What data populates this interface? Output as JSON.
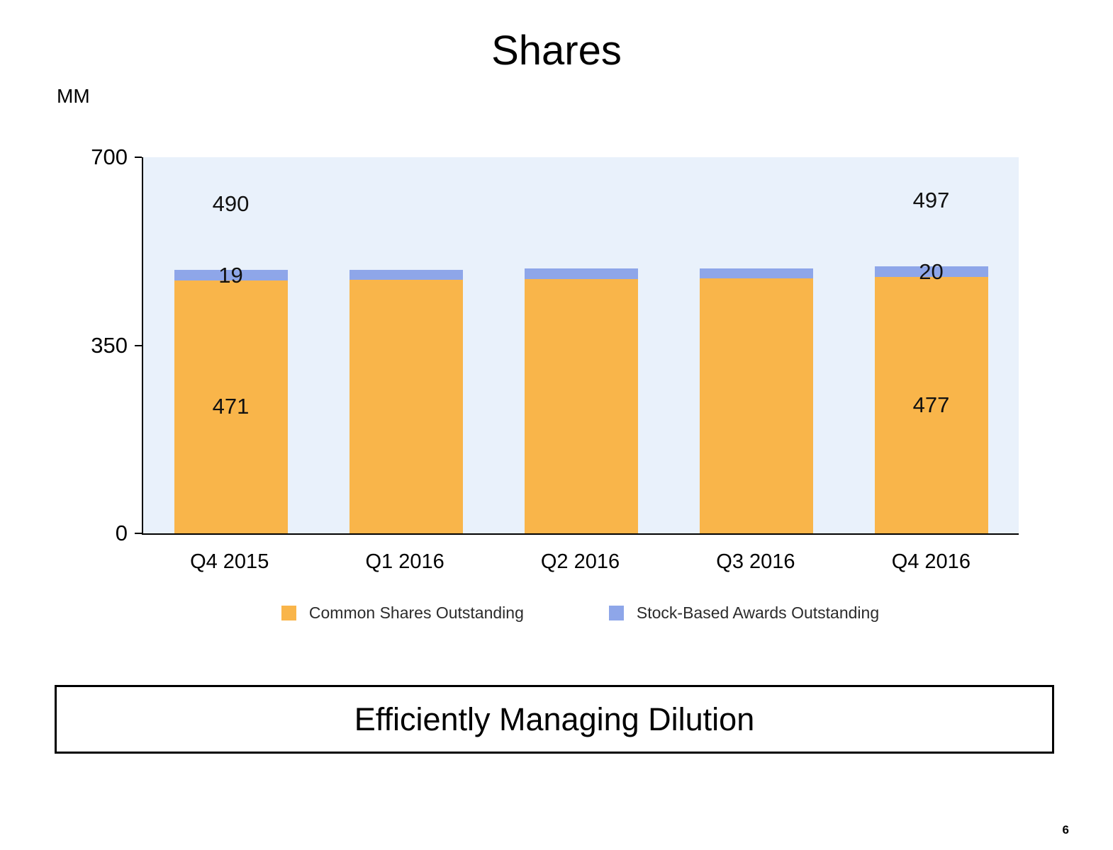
{
  "title": "Shares",
  "unit_label": "MM",
  "page_number": "6",
  "footer_banner": "Efficiently Managing Dilution",
  "legend": [
    {
      "label": "Common Shares Outstanding",
      "color": "#F9B54A"
    },
    {
      "label": "Stock-Based Awards Outstanding",
      "color": "#8EA6E9"
    }
  ],
  "chart_data": {
    "type": "bar",
    "stacked": true,
    "title": "Shares",
    "unit": "MM",
    "categories": [
      "Q4 2015",
      "Q1 2016",
      "Q2 2016",
      "Q3 2016",
      "Q4 2016"
    ],
    "series": [
      {
        "name": "Common Shares Outstanding",
        "color": "#F9B54A",
        "values": [
          471,
          472,
          473,
          474,
          477
        ]
      },
      {
        "name": "Stock-Based Awards Outstanding",
        "color": "#8EA6E9",
        "values": [
          19,
          19,
          20,
          19,
          20
        ]
      }
    ],
    "ylim": [
      0,
      700
    ],
    "yticks": [
      0,
      350,
      700
    ],
    "plot_background": "#E9F1FB",
    "grid": false,
    "legend_position": "bottom",
    "data_labels": [
      {
        "category_index": 0,
        "total": "490",
        "awards": "19",
        "common": "471"
      },
      {
        "category_index": 4,
        "total": "497",
        "awards": "20",
        "common": "477"
      }
    ]
  }
}
